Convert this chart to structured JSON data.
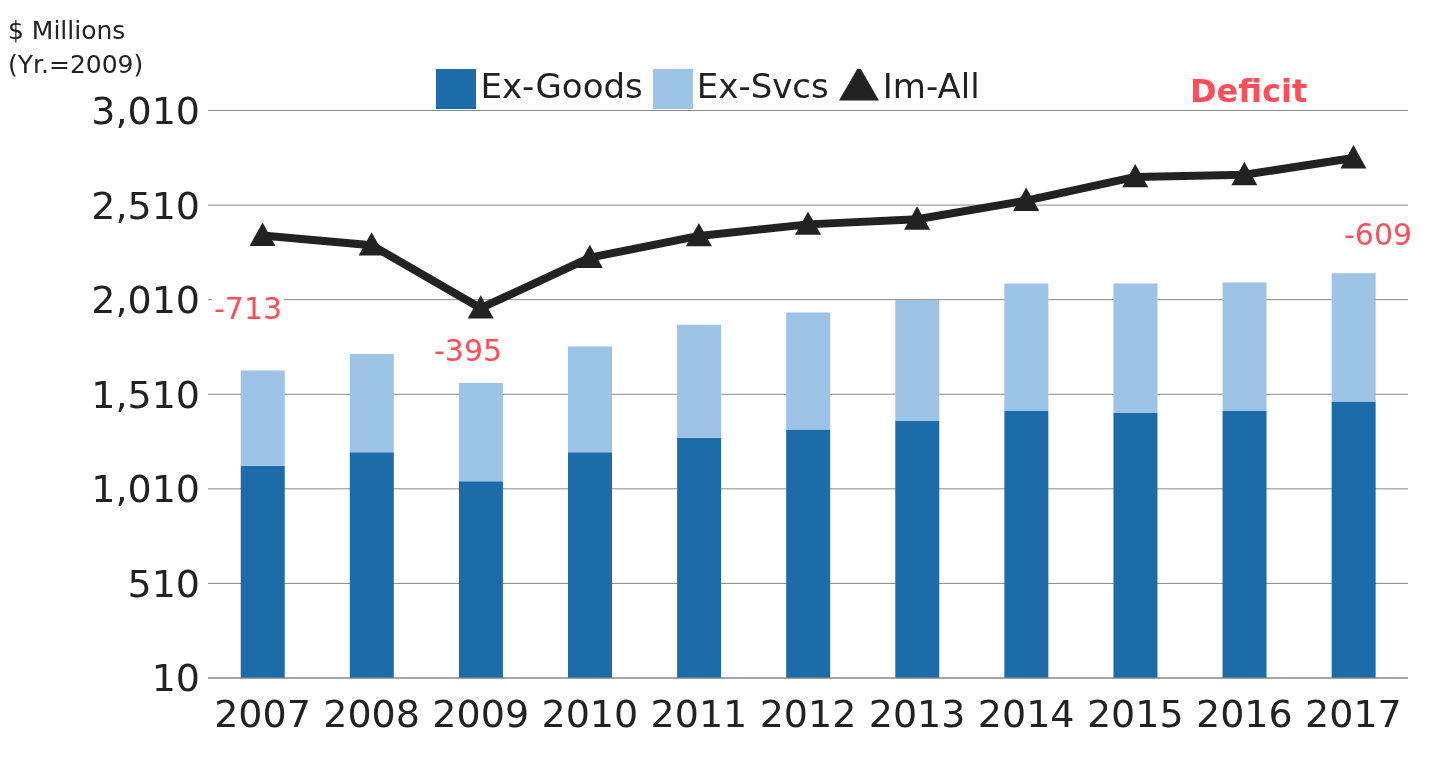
{
  "chart_data": {
    "type": "bar",
    "ylabel": "$ Millions (Yr.=2009)",
    "categories": [
      "2007",
      "2008",
      "2009",
      "2010",
      "2011",
      "2012",
      "2013",
      "2014",
      "2015",
      "2016",
      "2017"
    ],
    "series": [
      {
        "name": "Ex-Goods",
        "color": "#1b6ca8",
        "values": [
          1132,
          1203,
          1050,
          1203,
          1280,
          1324,
          1368,
          1422,
          1411,
          1422,
          1472
        ]
      },
      {
        "name": "Ex-Svcs",
        "color": "#9dc3e6",
        "values": [
          504,
          520,
          520,
          559,
          597,
          618,
          640,
          674,
          685,
          679,
          678
        ]
      },
      {
        "name": "Im-All",
        "type": "line",
        "color": "#222222",
        "values": [
          2349,
          2298,
          1965,
          2232,
          2347,
          2408,
          2435,
          2534,
          2659,
          2670,
          2759
        ]
      }
    ],
    "stacked": true,
    "ylim": [
      10,
      3010
    ],
    "yticks": [
      10,
      510,
      {
        "value": 1010,
        "label": "1,010"
      },
      {
        "value": 1510,
        "label": "1,510"
      },
      {
        "value": 2010,
        "label": "2,010"
      },
      {
        "value": 2510,
        "label": "2,510"
      },
      {
        "value": 3010,
        "label": "3,010"
      }
    ],
    "grid": "y",
    "legend": "top",
    "marker": "triangle",
    "line_style": "solid",
    "annotations": [
      "Deficit",
      "-713",
      "-395",
      "-609"
    ]
  }
}
